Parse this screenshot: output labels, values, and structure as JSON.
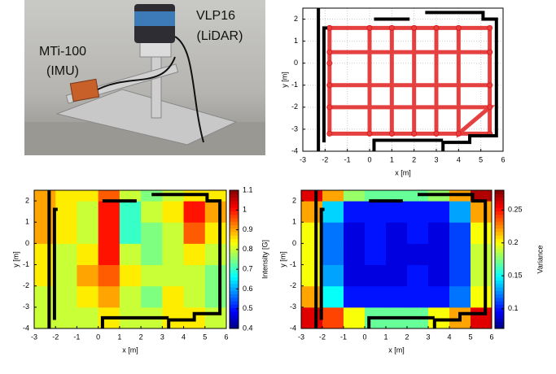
{
  "photo": {
    "labels": [
      "VLP16",
      "(LiDAR)",
      "MTi-100",
      "(IMU)"
    ]
  },
  "chart_data": [
    {
      "type": "trajectory",
      "xlabel": "x [m]",
      "ylabel": "y [m]",
      "color": "#e02020",
      "xlim": [
        -3,
        6
      ],
      "ylim": [
        -4,
        2.5
      ],
      "xticks": [
        -3,
        -2,
        -1,
        0,
        1,
        2,
        3,
        4,
        5,
        6
      ],
      "yticks": [
        -4,
        -3,
        -2,
        -1,
        0,
        1,
        2
      ],
      "grid": true,
      "x": [
        -1.8,
        0,
        1,
        2,
        3,
        4,
        5.4,
        5.4,
        5.4,
        5.4,
        5.4,
        4,
        3,
        2,
        1,
        0,
        -1.8,
        -1.8,
        -1.8,
        -1.8,
        -1.8,
        0,
        0,
        1,
        1,
        2,
        2,
        3,
        3,
        4,
        4,
        5.4,
        -1.8,
        -1.8,
        5.4,
        5.4,
        -1.8
      ],
      "y": [
        1.6,
        1.6,
        1.6,
        1.6,
        1.6,
        1.6,
        1.6,
        0.5,
        -1,
        -2,
        -3.2,
        -3.2,
        -3.2,
        -3.2,
        -3.2,
        -3.2,
        -3.2,
        -2,
        -1,
        0,
        1.6,
        1.6,
        -3.2,
        -3.2,
        1.6,
        1.6,
        -3.2,
        -3.2,
        1.6,
        1.6,
        -3.2,
        -2,
        -2,
        0.5,
        0.5,
        -1,
        -1
      ],
      "walls": [
        {
          "x": [
            -2.3,
            -2.3
          ],
          "y": [
            -4,
            2.5
          ]
        },
        {
          "x": [
            -2.05,
            -2.05,
            -1.9
          ],
          "y": [
            -3.6,
            1.6,
            1.6
          ]
        },
        {
          "x": [
            0.2,
            1.8
          ],
          "y": [
            2.0,
            2.0
          ]
        },
        {
          "x": [
            2.5,
            5.1,
            5.1,
            5.7,
            5.7,
            4.5,
            4.5,
            3.3,
            3.3
          ],
          "y": [
            2.3,
            2.3,
            2.0,
            2.0,
            -3.3,
            -3.3,
            -3.6,
            -3.6,
            -4
          ]
        },
        {
          "x": [
            3.3,
            0.2,
            0.2
          ],
          "y": [
            -3.5,
            -3.5,
            -4
          ]
        }
      ]
    },
    {
      "type": "heatmap",
      "xlabel": "x [m]",
      "ylabel": "y [m]",
      "colorbar_label": "Intensity [G]",
      "xlim": [
        -3,
        6
      ],
      "ylim": [
        -4,
        2.5
      ],
      "xticks": [
        -3,
        -2,
        -1,
        0,
        1,
        2,
        3,
        4,
        5,
        6
      ],
      "yticks": [
        -4,
        -3,
        -2,
        -1,
        0,
        1,
        2
      ],
      "clim": [
        0.4,
        1.1
      ],
      "cticks": [
        0.4,
        0.5,
        0.6,
        0.7,
        0.8,
        0.9,
        1,
        1.1
      ],
      "x_edges": [
        -3,
        -2,
        -1,
        0,
        1,
        2,
        3,
        4,
        5,
        6
      ],
      "y_edges": [
        -4,
        -3,
        -2,
        -1,
        0,
        1,
        2,
        2.5
      ],
      "z": [
        [
          0.8,
          0.8,
          0.8,
          0.85,
          0.8,
          0.8,
          0.85,
          0.85,
          0.8
        ],
        [
          0.8,
          0.8,
          0.85,
          0.9,
          0.8,
          0.75,
          0.85,
          0.8,
          0.75
        ],
        [
          0.85,
          0.8,
          0.9,
          0.95,
          0.85,
          0.8,
          0.8,
          0.8,
          0.75
        ],
        [
          0.85,
          0.8,
          0.85,
          1.0,
          0.8,
          0.75,
          0.8,
          0.85,
          0.8
        ],
        [
          0.9,
          0.85,
          0.8,
          1.0,
          0.7,
          0.75,
          0.8,
          0.95,
          0.85
        ],
        [
          0.9,
          0.85,
          0.8,
          1.0,
          0.7,
          0.8,
          0.85,
          1.0,
          0.9
        ],
        [
          0.9,
          0.85,
          0.85,
          0.95,
          0.8,
          0.75,
          0.8,
          0.85,
          0.85
        ]
      ],
      "walls": [
        {
          "x": [
            -2.3,
            -2.3
          ],
          "y": [
            -4,
            2.5
          ]
        },
        {
          "x": [
            -2.05,
            -2.05,
            -1.9
          ],
          "y": [
            -3.6,
            1.6,
            1.6
          ]
        },
        {
          "x": [
            0.2,
            1.8
          ],
          "y": [
            2.0,
            2.0
          ]
        },
        {
          "x": [
            2.5,
            5.1,
            5.1,
            5.7,
            5.7,
            4.5,
            4.5,
            3.3,
            3.3
          ],
          "y": [
            2.3,
            2.3,
            2.0,
            2.0,
            -3.3,
            -3.3,
            -3.6,
            -3.6,
            -4
          ]
        },
        {
          "x": [
            3.3,
            0.2,
            0.2
          ],
          "y": [
            -3.5,
            -3.5,
            -4
          ]
        }
      ]
    },
    {
      "type": "heatmap",
      "xlabel": "x [m]",
      "ylabel": "y [m]",
      "colorbar_label": "Variance",
      "xlim": [
        -3,
        6
      ],
      "ylim": [
        -4,
        2.5
      ],
      "xticks": [
        -3,
        -2,
        -1,
        0,
        1,
        2,
        3,
        4,
        5,
        6
      ],
      "yticks": [
        -4,
        -3,
        -2,
        -1,
        0,
        1,
        2
      ],
      "clim": [
        0.07,
        0.28
      ],
      "cticks": [
        0.1,
        0.15,
        0.2,
        0.25
      ],
      "x_edges": [
        -3,
        -2,
        -1,
        0,
        1,
        2,
        3,
        4,
        5,
        6
      ],
      "y_edges": [
        -4,
        -3,
        -2,
        -1,
        0,
        1,
        2,
        2.5
      ],
      "z": [
        [
          0.26,
          0.24,
          0.2,
          0.17,
          0.17,
          0.17,
          0.2,
          0.22,
          0.26
        ],
        [
          0.22,
          0.15,
          0.1,
          0.1,
          0.1,
          0.1,
          0.1,
          0.12,
          0.2
        ],
        [
          0.2,
          0.13,
          0.09,
          0.09,
          0.09,
          0.1,
          0.09,
          0.11,
          0.19
        ],
        [
          0.2,
          0.12,
          0.09,
          0.1,
          0.09,
          0.09,
          0.09,
          0.11,
          0.19
        ],
        [
          0.2,
          0.12,
          0.09,
          0.1,
          0.09,
          0.1,
          0.09,
          0.11,
          0.2
        ],
        [
          0.22,
          0.14,
          0.1,
          0.1,
          0.1,
          0.1,
          0.1,
          0.13,
          0.22
        ],
        [
          0.26,
          0.22,
          0.18,
          0.17,
          0.17,
          0.17,
          0.18,
          0.22,
          0.27
        ]
      ],
      "walls": [
        {
          "x": [
            -2.3,
            -2.3
          ],
          "y": [
            -4,
            2.5
          ]
        },
        {
          "x": [
            -2.05,
            -2.05,
            -1.9
          ],
          "y": [
            -3.6,
            1.6,
            1.6
          ]
        },
        {
          "x": [
            0.2,
            1.8
          ],
          "y": [
            2.0,
            2.0
          ]
        },
        {
          "x": [
            2.5,
            5.1,
            5.1,
            5.7,
            5.7,
            4.5,
            4.5,
            3.3,
            3.3
          ],
          "y": [
            2.3,
            2.3,
            2.0,
            2.0,
            -3.3,
            -3.3,
            -3.6,
            -3.6,
            -4
          ]
        },
        {
          "x": [
            3.3,
            0.2,
            0.2
          ],
          "y": [
            -3.5,
            -3.5,
            -4
          ]
        }
      ]
    }
  ]
}
